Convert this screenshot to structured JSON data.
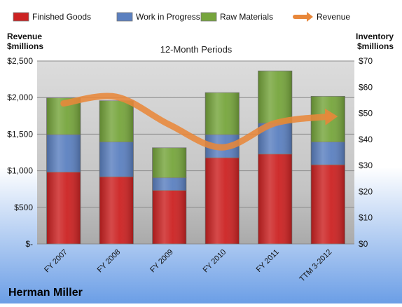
{
  "chart_data": {
    "type": "bar",
    "stacked": true,
    "subtitle": "12-Month Periods",
    "company": "Herman Miller",
    "categories": [
      "FY 2007",
      "FY 2008",
      "FY 2009",
      "FY 2010",
      "FY 2011",
      "TTM 3-2012"
    ],
    "left_axis": {
      "label_line1": "Revenue",
      "label_line2": "$millions",
      "min": 0,
      "max": 2500,
      "ticks": [
        0,
        500,
        1000,
        1500,
        2000,
        2500
      ],
      "tick_labels": [
        "$-",
        "$500",
        "$1,000",
        "$1,500",
        "$2,000",
        "$2,500"
      ]
    },
    "right_axis": {
      "label_line1": "Inventory",
      "label_line2": "$millions",
      "min": 0,
      "max": 70,
      "ticks": [
        0,
        10,
        20,
        30,
        40,
        50,
        60,
        70
      ],
      "tick_labels": [
        "$0",
        "$10",
        "$20",
        "$30",
        "$40",
        "$50",
        "$60",
        "$70"
      ]
    },
    "legend_position": "top",
    "grid": true,
    "series": [
      {
        "name": "Finished Goods",
        "axis": "right",
        "color": "#cc2222",
        "values": [
          27.5,
          25.7,
          20.5,
          33.0,
          34.4,
          30.3
        ]
      },
      {
        "name": "Work in Progress",
        "axis": "right",
        "color": "#5b80c0",
        "values": [
          14.3,
          13.3,
          4.8,
          8.8,
          11.8,
          8.7
        ]
      },
      {
        "name": "Raw Materials",
        "axis": "right",
        "color": "#76a53c",
        "values": [
          14.1,
          15.8,
          11.5,
          16.1,
          20.0,
          17.5
        ]
      }
    ],
    "line_series": {
      "name": "Revenue",
      "axis": "left",
      "color": "#e8873a",
      "values": [
        1920,
        2010,
        1630,
        1320,
        1650,
        1740
      ]
    }
  }
}
